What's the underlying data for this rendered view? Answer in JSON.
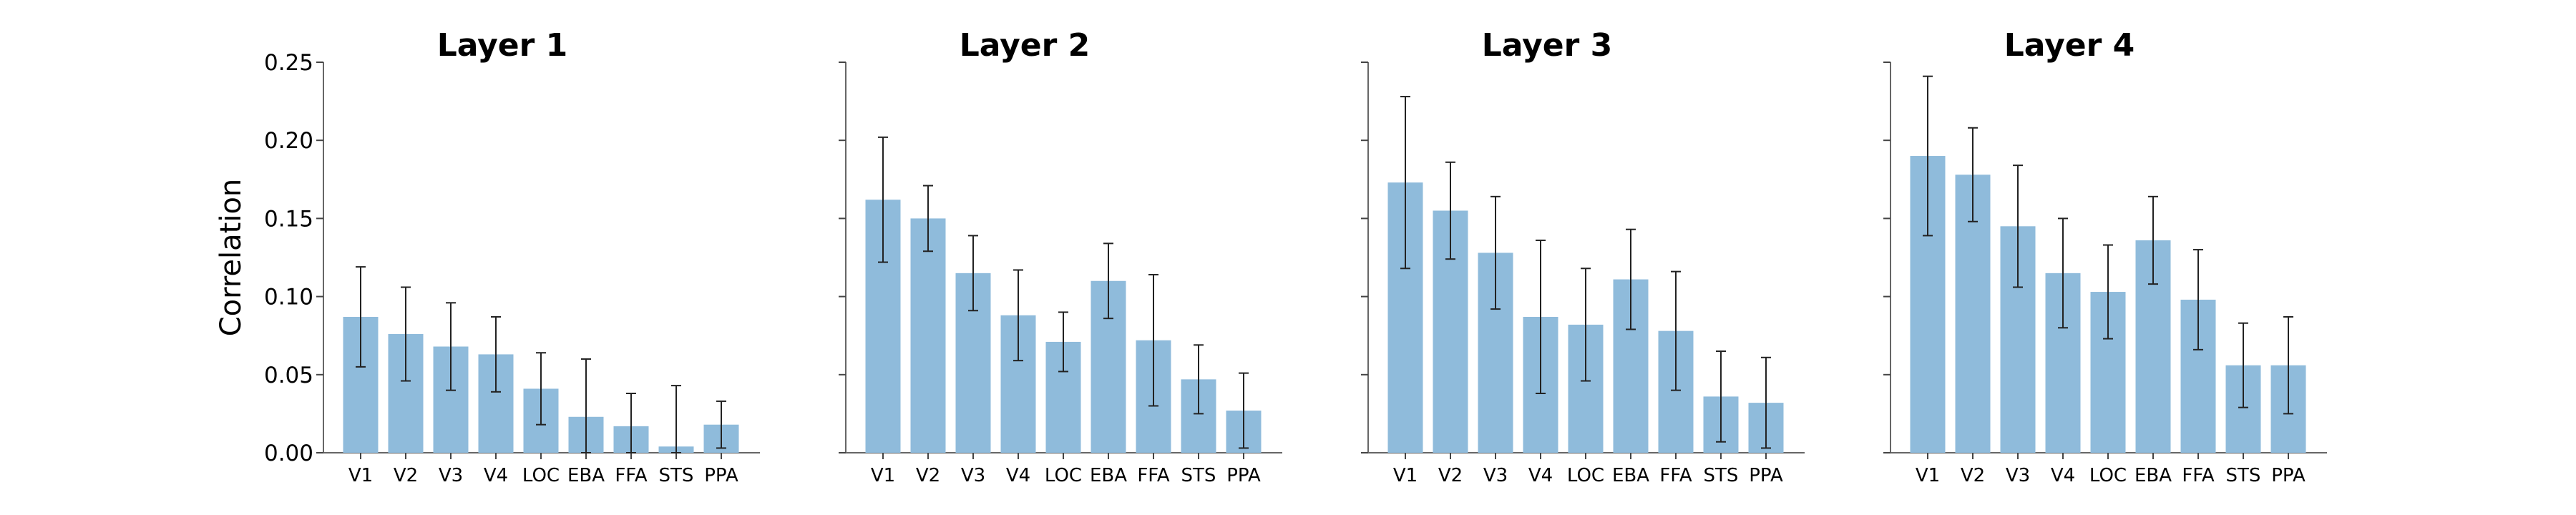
{
  "chart_data": [
    {
      "type": "bar",
      "title": "Layer 1",
      "ylabel": "Correlation",
      "categories": [
        "V1",
        "V2",
        "V3",
        "V4",
        "LOC",
        "EBA",
        "FFA",
        "STS",
        "PPA"
      ],
      "values": [
        0.087,
        0.076,
        0.068,
        0.063,
        0.041,
        0.023,
        0.017,
        0.004,
        0.018
      ],
      "error": [
        0.032,
        0.03,
        0.028,
        0.024,
        0.023,
        0.037,
        0.021,
        0.039,
        0.015
      ],
      "ylim": [
        0,
        0.25
      ],
      "yticks": [
        "0.00",
        "0.05",
        "0.10",
        "0.15",
        "0.20",
        "0.25"
      ],
      "color": "#8fbbdb"
    },
    {
      "type": "bar",
      "title": "Layer 2",
      "ylabel": "",
      "categories": [
        "V1",
        "V2",
        "V3",
        "V4",
        "LOC",
        "EBA",
        "FFA",
        "STS",
        "PPA"
      ],
      "values": [
        0.162,
        0.15,
        0.115,
        0.088,
        0.071,
        0.11,
        0.072,
        0.047,
        0.027
      ],
      "error": [
        0.04,
        0.021,
        0.024,
        0.029,
        0.019,
        0.024,
        0.042,
        0.022,
        0.024
      ],
      "ylim": [
        0,
        0.25
      ],
      "yticks": [],
      "color": "#8fbbdb"
    },
    {
      "type": "bar",
      "title": "Layer 3",
      "ylabel": "",
      "categories": [
        "V1",
        "V2",
        "V3",
        "V4",
        "LOC",
        "EBA",
        "FFA",
        "STS",
        "PPA"
      ],
      "values": [
        0.173,
        0.155,
        0.128,
        0.087,
        0.082,
        0.111,
        0.078,
        0.036,
        0.032
      ],
      "error": [
        0.055,
        0.031,
        0.036,
        0.049,
        0.036,
        0.032,
        0.038,
        0.029,
        0.029
      ],
      "ylim": [
        0,
        0.25
      ],
      "yticks": [],
      "color": "#8fbbdb"
    },
    {
      "type": "bar",
      "title": "Layer 4",
      "ylabel": "",
      "categories": [
        "V1",
        "V2",
        "V3",
        "V4",
        "LOC",
        "EBA",
        "FFA",
        "STS",
        "PPA"
      ],
      "values": [
        0.19,
        0.178,
        0.145,
        0.115,
        0.103,
        0.136,
        0.098,
        0.056,
        0.056
      ],
      "error": [
        0.051,
        0.03,
        0.039,
        0.035,
        0.03,
        0.028,
        0.032,
        0.027,
        0.031
      ],
      "ylim": [
        0,
        0.25
      ],
      "yticks": [],
      "color": "#8fbbdb"
    }
  ]
}
